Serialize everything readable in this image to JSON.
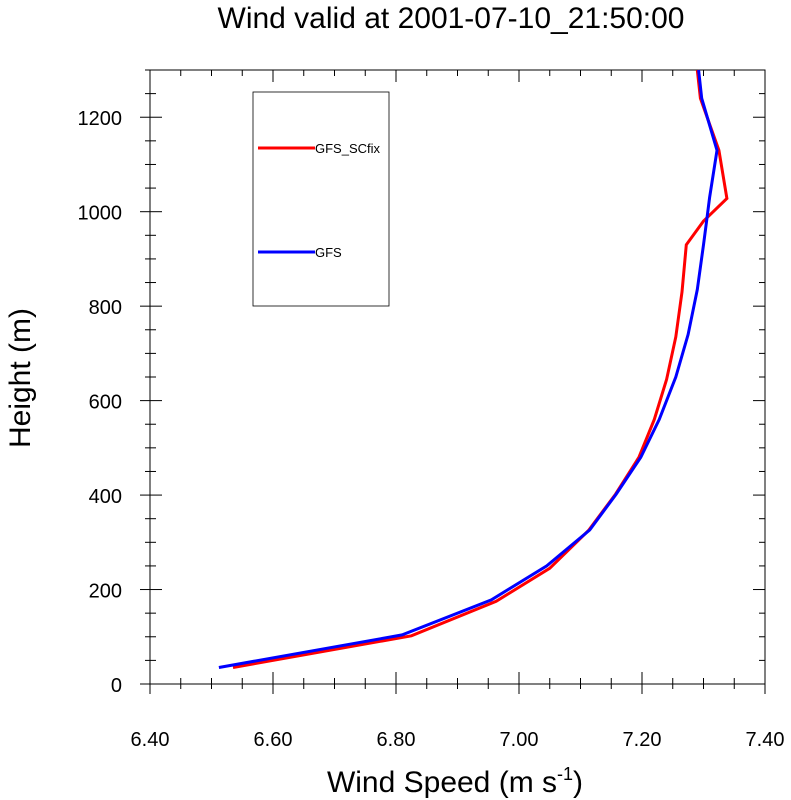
{
  "chart_data": {
    "type": "line",
    "title": "Wind valid at 2001-07-10_21:50:00",
    "xlabel": "Wind Speed (m s",
    "xlabel_sup": "-1",
    "xlabel_end": ")",
    "ylabel": "Height (m)",
    "xlim": [
      6.4,
      7.4
    ],
    "ylim": [
      0,
      1300
    ],
    "xticks": [
      "6.40",
      "6.60",
      "6.80",
      "7.00",
      "7.20",
      "7.40"
    ],
    "yticks": [
      "0",
      "200",
      "400",
      "600",
      "800",
      "1000",
      "1200"
    ],
    "legend": {
      "position": "upper-left",
      "framed": true
    },
    "series": [
      {
        "name": "GFS_SCfix",
        "color": "#ff0000",
        "x": [
          6.535,
          6.825,
          6.963,
          7.05,
          7.113,
          7.157,
          7.195,
          7.22,
          7.24,
          7.255,
          7.265,
          7.272,
          7.3,
          7.338,
          7.325,
          7.295,
          7.29
        ],
        "y": [
          35,
          102,
          175,
          245,
          325,
          402,
          480,
          560,
          645,
          735,
          830,
          930,
          980,
          1028,
          1130,
          1240,
          1300
        ]
      },
      {
        "name": "GFS",
        "color": "#0000ff",
        "x": [
          6.512,
          6.81,
          6.955,
          7.045,
          7.115,
          7.158,
          7.198,
          7.228,
          7.255,
          7.275,
          7.29,
          7.3,
          7.305,
          7.31,
          7.322,
          7.297,
          7.292
        ],
        "y": [
          35,
          104,
          178,
          250,
          326,
          402,
          480,
          560,
          650,
          740,
          835,
          930,
          980,
          1030,
          1130,
          1240,
          1300
        ]
      }
    ]
  }
}
